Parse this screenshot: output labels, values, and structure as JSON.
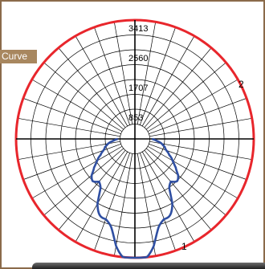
{
  "legend": {
    "label": "Curve"
  },
  "colors": {
    "outer_ring": "#e8262c",
    "curve": "#2f4fa2",
    "grid": "#000000",
    "frame": "#8b6b4a",
    "tab": "#a8875f"
  },
  "chart_data": {
    "type": "polar",
    "title": "",
    "radial_max": 3413,
    "radial_ticks": [
      853,
      1707,
      2560,
      3413
    ],
    "radial_tick_labels": [
      "853",
      "1707",
      "2560",
      "3413"
    ],
    "angle_step_deg": 10,
    "series": [
      {
        "name": "1",
        "points": [
          [
            0,
            3413
          ],
          [
            5,
            3300
          ],
          [
            10,
            3120
          ],
          [
            15,
            2750
          ],
          [
            20,
            2450
          ],
          [
            25,
            2300
          ],
          [
            30,
            2150
          ],
          [
            35,
            1800
          ],
          [
            40,
            1600
          ],
          [
            45,
            1640
          ],
          [
            50,
            1620
          ],
          [
            55,
            1500
          ],
          [
            60,
            1250
          ],
          [
            65,
            1040
          ],
          [
            70,
            960
          ],
          [
            75,
            930
          ],
          [
            80,
            780
          ],
          [
            85,
            600
          ],
          [
            90,
            490
          ]
        ],
        "mirrored": true
      },
      {
        "name": "2",
        "points": [],
        "mirrored": true
      }
    ],
    "series_labels": [
      {
        "text": "1"
      },
      {
        "text": "2"
      }
    ]
  }
}
